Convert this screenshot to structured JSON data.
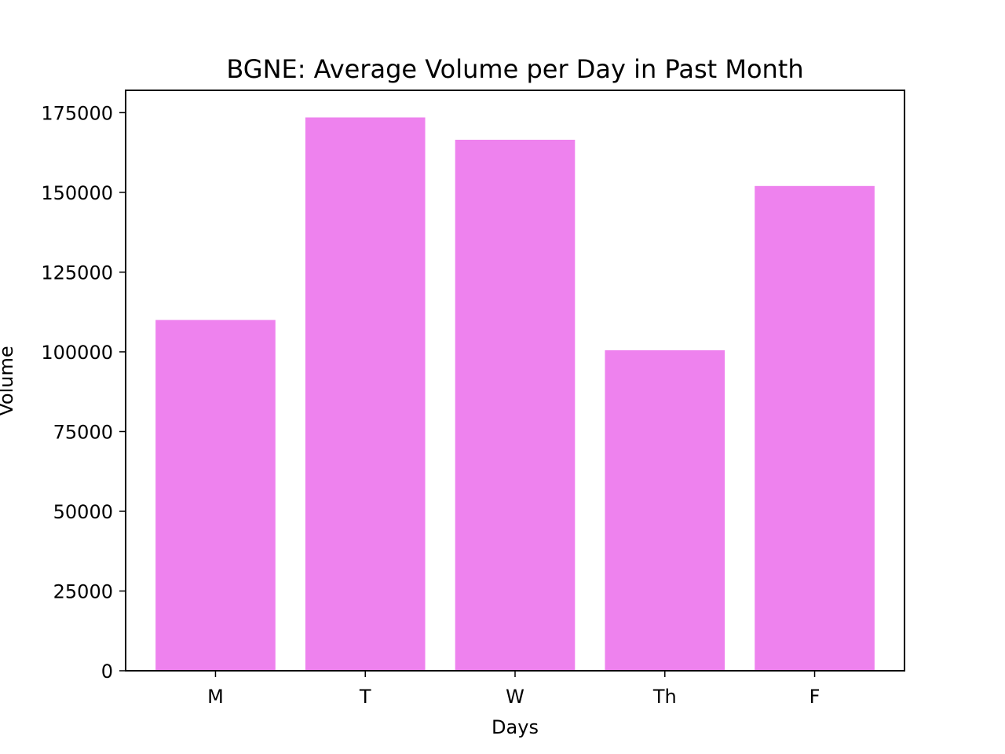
{
  "chart_data": {
    "type": "bar",
    "title": "BGNE: Average Volume per Day in Past Month",
    "xlabel": "Days",
    "ylabel": "Volume",
    "categories": [
      "M",
      "T",
      "W",
      "Th",
      "F"
    ],
    "values": [
      110000,
      173500,
      166500,
      100500,
      152000
    ],
    "ylim": [
      0,
      182000
    ],
    "yticks": [
      0,
      25000,
      50000,
      75000,
      100000,
      125000,
      150000,
      175000
    ],
    "grid": false,
    "bar_color": "#ee82ee",
    "axis_color": "#000000",
    "background": "#ffffff"
  }
}
